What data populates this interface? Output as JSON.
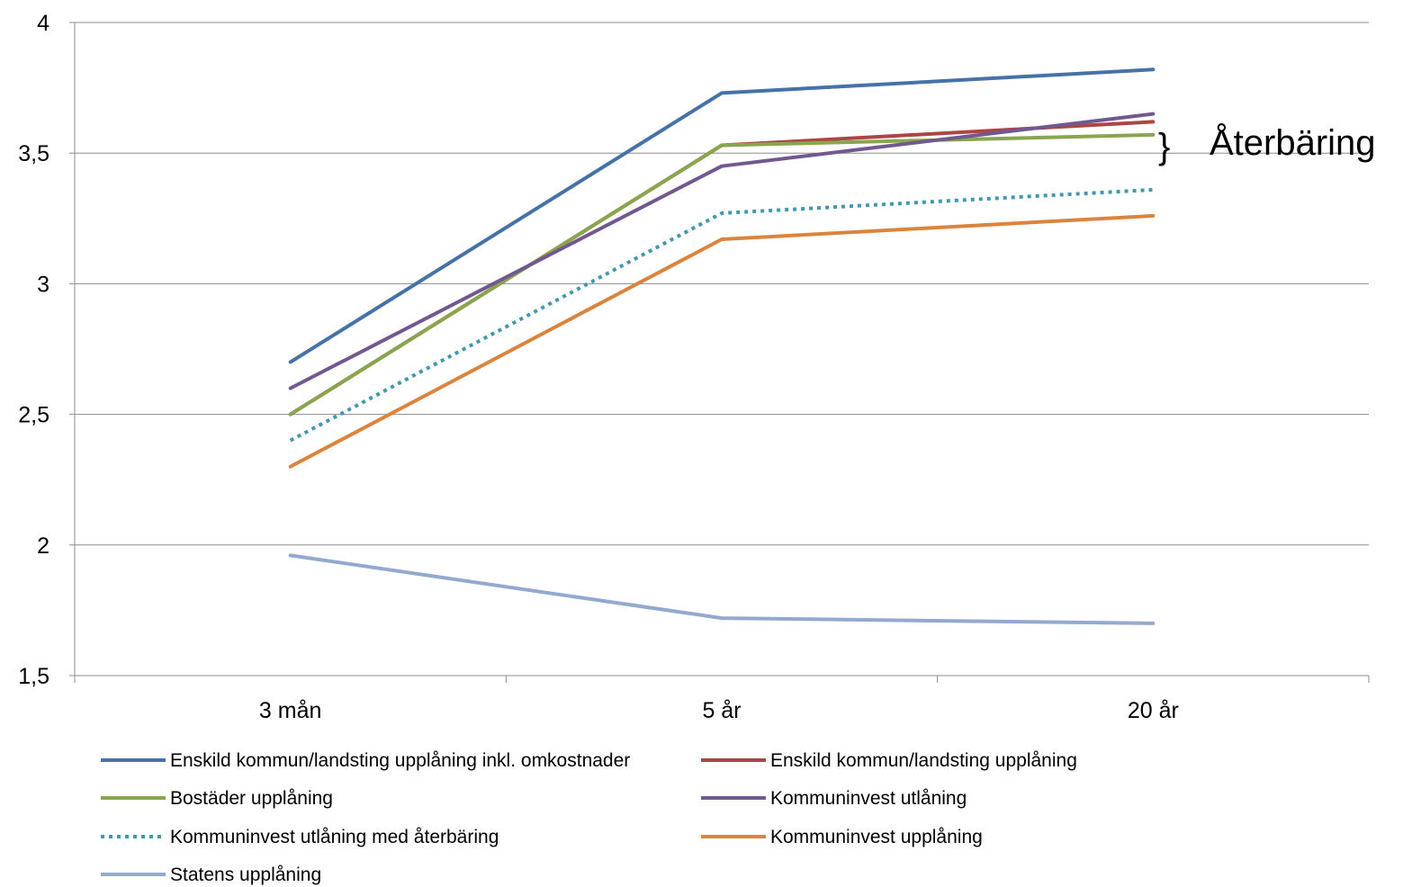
{
  "chart_data": {
    "type": "line",
    "title": "",
    "xlabel": "",
    "ylabel": "",
    "categories": [
      "3 mån",
      "5 år",
      "20 år"
    ],
    "ylim": [
      1.5,
      4
    ],
    "yticks": [
      "1,5",
      "2",
      "2,5",
      "3",
      "3,5",
      "4"
    ],
    "grid": true,
    "legend_position": "bottom",
    "series": [
      {
        "name": "Enskild kommun/landsting upplåning inkl. omkostnader",
        "values": [
          2.7,
          3.73,
          3.82
        ],
        "color": "#4572a7",
        "dashed": false
      },
      {
        "name": "Enskild kommun/landsting upplåning",
        "values": [
          2.5,
          3.53,
          3.62
        ],
        "color": "#aa4643",
        "dashed": false
      },
      {
        "name": "Bostäder upplåning",
        "values": [
          2.5,
          3.53,
          3.57
        ],
        "color": "#89a54e",
        "dashed": false
      },
      {
        "name": "Kommuninvest utlåning",
        "values": [
          2.6,
          3.45,
          3.65
        ],
        "color": "#71588f",
        "dashed": false
      },
      {
        "name": "Kommuninvest utlåning med återbäring",
        "values": [
          2.4,
          3.27,
          3.36
        ],
        "color": "#4198af",
        "dashed": true
      },
      {
        "name": "Kommuninvest upplåning",
        "values": [
          2.3,
          3.17,
          3.26
        ],
        "color": "#db843d",
        "dashed": false
      },
      {
        "name": "Statens upplåning",
        "values": [
          1.96,
          1.72,
          1.7
        ],
        "color": "#93a9cf",
        "dashed": false
      }
    ],
    "annotations": [
      {
        "text": "Återbäring",
        "brace": "}",
        "spans_series": [
          "Enskild kommun/landsting upplåning",
          "Bostäder upplåning",
          "Kommuninvest utlåning"
        ]
      }
    ]
  }
}
